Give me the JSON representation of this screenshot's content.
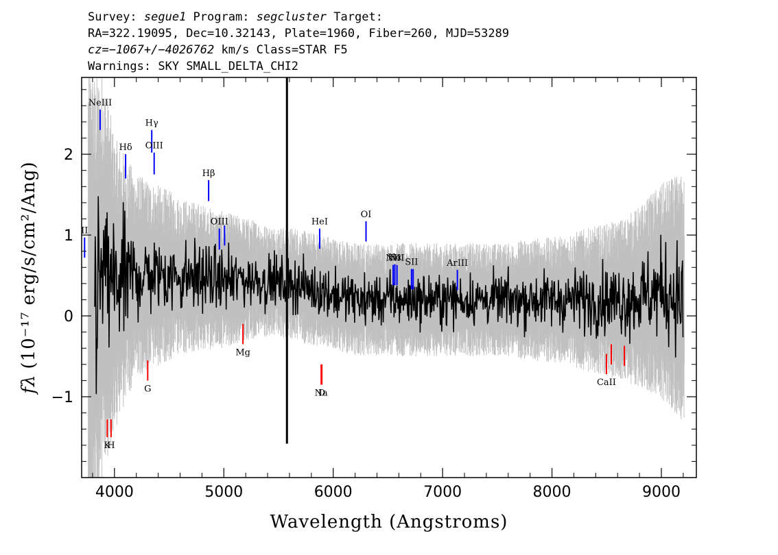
{
  "header": {
    "line1": {
      "survey_prefix": "Survey: ",
      "survey": "segue1",
      "program_prefix": " Program: ",
      "program": "segcluster",
      "target": " Target:"
    },
    "line2": "RA=322.19095, Dec=10.32143, Plate=1960, Fiber=260, MJD=53289",
    "line3": {
      "cz": "cz=−1067+/−4026762",
      "rest": " km/s Class=STAR F5"
    },
    "line4": "Warnings: SKY SMALL_DELTA_CHI2"
  },
  "chart_data": {
    "type": "line",
    "xlabel": "Wavelength (Angstroms)",
    "ylabel_text": "(10⁻¹⁷ erg/s/cm²/Ang)",
    "ylabel_symbol": "fλ",
    "xlim": [
      3700,
      9320
    ],
    "ylim": [
      -2.0,
      2.95
    ],
    "x_ticks": [
      4000,
      5000,
      6000,
      7000,
      8000,
      9000
    ],
    "x_tick_labels": [
      "4000",
      "5000",
      "6000",
      "7000",
      "8000",
      "9000"
    ],
    "y_ticks": [
      -1,
      0,
      1,
      2
    ],
    "y_tick_labels": [
      "−1",
      "0",
      "1",
      "2"
    ],
    "colors": {
      "flux": "#000000",
      "error": "#c0c0c0",
      "emission": "#0000ff",
      "absorption": "#ff0000"
    },
    "series": [
      {
        "role": "flux",
        "x": [
          3820,
          3900,
          4000,
          4100,
          4200,
          4300,
          4400,
          4500,
          4600,
          4700,
          4800,
          4900,
          5000,
          5100,
          5200,
          5300,
          5400,
          5500,
          5570,
          5650,
          5750,
          5850,
          5950,
          6050,
          6150,
          6250,
          6350,
          6450,
          6550,
          6650,
          6750,
          6850,
          6950,
          7050,
          7150,
          7250,
          7350,
          7450,
          7550,
          7650,
          7750,
          7850,
          7950,
          8050,
          8150,
          8250,
          8350,
          8450,
          8550,
          8650,
          8750,
          8850,
          8950,
          9050,
          9150,
          9200
        ],
        "y": [
          0.2,
          0.5,
          0.4,
          0.45,
          0.5,
          0.5,
          0.5,
          0.5,
          0.48,
          0.48,
          0.48,
          0.45,
          0.45,
          0.45,
          0.45,
          0.45,
          0.42,
          0.42,
          0.4,
          0.4,
          0.35,
          0.32,
          0.3,
          0.25,
          0.22,
          0.2,
          0.2,
          0.2,
          0.2,
          0.2,
          0.2,
          0.2,
          0.2,
          0.2,
          0.2,
          0.2,
          0.2,
          0.2,
          0.2,
          0.2,
          0.2,
          0.2,
          0.2,
          0.2,
          0.2,
          0.2,
          0.2,
          0.2,
          0.2,
          0.2,
          0.22,
          0.25,
          0.3,
          0.3,
          0.25,
          0.2
        ]
      },
      {
        "role": "error",
        "x": [
          3750,
          3900,
          4000,
          4200,
          4400,
          4600,
          4800,
          5000,
          5200,
          5400,
          5600,
          5800,
          6000,
          6200,
          6400,
          6600,
          6800,
          7000,
          7200,
          7400,
          7600,
          7800,
          8000,
          8200,
          8400,
          8600,
          8800,
          9000,
          9200
        ],
        "y": [
          2.2,
          1.8,
          1.3,
          0.9,
          0.8,
          0.7,
          0.65,
          0.6,
          0.55,
          0.5,
          0.5,
          0.5,
          0.5,
          0.5,
          0.5,
          0.5,
          0.5,
          0.5,
          0.5,
          0.5,
          0.5,
          0.55,
          0.55,
          0.6,
          0.65,
          0.7,
          0.8,
          0.95,
          1.1
        ]
      }
    ],
    "spike": {
      "x": 5577,
      "y_top": 2.95,
      "y_bottom": -1.58
    },
    "emission_lines": [
      {
        "label": "NeIII",
        "x": 3869,
        "y0": 2.3,
        "y1": 2.55
      },
      {
        "label": "Hδ",
        "x": 4102,
        "y0": 1.7,
        "y1": 2.0
      },
      {
        "label": "Hγ",
        "x": 4341,
        "y0": 2.02,
        "y1": 2.3
      },
      {
        "label": "OIII",
        "x": 4363,
        "y0": 1.75,
        "y1": 2.02
      },
      {
        "label": "Hβ",
        "x": 4861,
        "y0": 1.42,
        "y1": 1.68
      },
      {
        "label": "OIII",
        "x": 4959,
        "y0": 0.82,
        "y1": 1.08
      },
      {
        "label": "",
        "x": 5007,
        "y0": 0.87,
        "y1": 1.12
      },
      {
        "label": "HeI",
        "x": 5876,
        "y0": 0.83,
        "y1": 1.08
      },
      {
        "label": "OI",
        "x": 6300,
        "y0": 0.92,
        "y1": 1.17
      },
      {
        "label": "NII",
        "x": 6548,
        "y0": 0.38,
        "y1": 0.63
      },
      {
        "label": "Hα",
        "x": 6563,
        "y0": 0.38,
        "y1": 0.64
      },
      {
        "label": "NII",
        "x": 6583,
        "y0": 0.38,
        "y1": 0.63
      },
      {
        "label": "SII",
        "x": 6716,
        "y0": 0.33,
        "y1": 0.58
      },
      {
        "label": "",
        "x": 6731,
        "y0": 0.33,
        "y1": 0.58
      },
      {
        "label": "ArIII",
        "x": 7135,
        "y0": 0.32,
        "y1": 0.57
      },
      {
        "label": "II",
        "x": 3727,
        "y0": 0.72,
        "y1": 0.97
      }
    ],
    "absorption_lines": [
      {
        "label": "K",
        "x": 3934,
        "y0": -1.5,
        "y1": -1.28
      },
      {
        "label": "H",
        "x": 3969,
        "y0": -1.5,
        "y1": -1.28
      },
      {
        "label": "G",
        "x": 4304,
        "y0": -0.8,
        "y1": -0.55
      },
      {
        "label": "Mg",
        "x": 5175,
        "y0": -0.35,
        "y1": -0.1
      },
      {
        "label": "Na",
        "x": 5890,
        "y0": -0.85,
        "y1": -0.6
      },
      {
        "label": "D",
        "x": 5896,
        "y0": -0.85,
        "y1": -0.6
      },
      {
        "label": "CaII",
        "x": 8498,
        "y0": -0.72,
        "y1": -0.47
      },
      {
        "label": "",
        "x": 8542,
        "y0": -0.6,
        "y1": -0.35
      },
      {
        "label": "",
        "x": 8662,
        "y0": -0.62,
        "y1": -0.37
      }
    ]
  }
}
